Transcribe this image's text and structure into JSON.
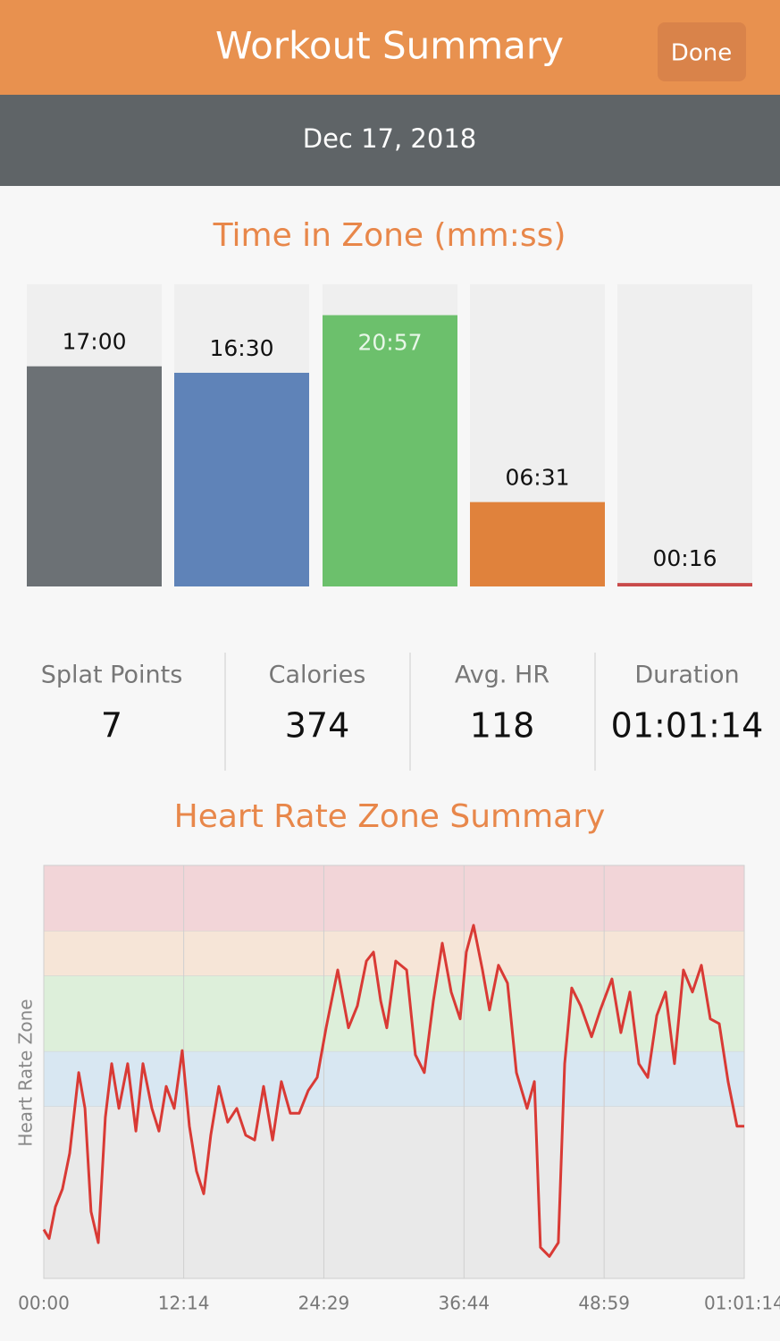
{
  "header": {
    "title": "Workout Summary",
    "button": "Done",
    "date": "Dec 17, 2018"
  },
  "stats": [
    {
      "label": "Splat Points",
      "value": 7
    },
    {
      "label": "Calories",
      "value": 374
    },
    {
      "label": "Avg. HR",
      "value": 118
    },
    {
      "label": "Duration",
      "value": "01:01:14"
    }
  ],
  "chart_data": [
    {
      "type": "bar",
      "title": "Time in Zone (mm:ss)",
      "categories": [
        null,
        null,
        null,
        null,
        null
      ],
      "values": [
        1020,
        990,
        1257,
        391,
        16
      ],
      "value_labels": [
        "17:00",
        "16:30",
        "20:57",
        "06:31",
        "00:16"
      ],
      "colors": [
        "#6c7175",
        "#5f83b8",
        "#6cc06c",
        "#e0823c",
        "#c94a4a"
      ],
      "ylim": [
        0,
        1400
      ]
    },
    {
      "type": "line",
      "title": "Heart Rate Zone Summary",
      "ylabel": "Heart Rate Zone",
      "xlim": [
        0,
        3674
      ],
      "ylim": [
        40,
        100
      ],
      "xticks": [
        {
          "value": 0,
          "label": "00:00"
        },
        {
          "value": 734,
          "label": "12:14"
        },
        {
          "value": 1469,
          "label": "24:29"
        },
        {
          "value": 2204,
          "label": "36:44"
        },
        {
          "value": 2939,
          "label": "48:59"
        },
        {
          "value": 3674,
          "label": "01:01:14"
        }
      ],
      "grid": true,
      "zones": [
        {
          "color": "#e9e9e9",
          "from": 40,
          "to": 65
        },
        {
          "color": "#d8e7f2",
          "from": 65,
          "to": 73
        },
        {
          "color": "#ddefda",
          "from": 73,
          "to": 84
        },
        {
          "color": "#f6e5d7",
          "from": 84,
          "to": 90.5
        },
        {
          "color": "#f2d5d8",
          "from": 90.5,
          "to": 100
        }
      ],
      "series": [
        {
          "color": "#d93a35",
          "x": [
            0,
            28,
            61,
            98,
            136,
            183,
            216,
            248,
            286,
            323,
            356,
            394,
            440,
            483,
            520,
            567,
            604,
            642,
            684,
            726,
            764,
            801,
            839,
            876,
            918,
            965,
            1012,
            1059,
            1106,
            1153,
            1200,
            1246,
            1293,
            1340,
            1387,
            1434,
            1481,
            1542,
            1598,
            1645,
            1692,
            1729,
            1767,
            1799,
            1846,
            1903,
            1949,
            1996,
            2043,
            2090,
            2137,
            2184,
            2216,
            2254,
            2301,
            2338,
            2385,
            2432,
            2479,
            2535,
            2573,
            2605,
            2652,
            2699,
            2732,
            2769,
            2816,
            2873,
            2919,
            2980,
            3027,
            3074,
            3121,
            3168,
            3215,
            3261,
            3308,
            3355,
            3402,
            3449,
            3496,
            3543,
            3589,
            3636,
            3674
          ],
          "values": [
            47.1,
            45.8,
            50.4,
            53.0,
            58.2,
            69.9,
            64.7,
            49.7,
            45.2,
            63.4,
            71.2,
            64.7,
            71.2,
            61.4,
            71.2,
            64.7,
            61.4,
            67.9,
            64.7,
            73.1,
            62.1,
            55.6,
            52.3,
            60.8,
            67.9,
            62.7,
            64.7,
            60.8,
            60.1,
            67.9,
            60.1,
            68.6,
            64.0,
            64.0,
            67.3,
            69.2,
            76.4,
            84.8,
            76.4,
            79.6,
            86.1,
            87.4,
            80.3,
            76.4,
            86.1,
            84.8,
            72.5,
            69.9,
            80.3,
            88.7,
            81.6,
            77.7,
            87.4,
            91.3,
            84.8,
            79.0,
            85.5,
            82.9,
            69.9,
            64.7,
            68.6,
            44.5,
            43.2,
            45.2,
            71.2,
            82.2,
            79.6,
            75.1,
            79.0,
            83.5,
            75.7,
            81.6,
            71.2,
            69.2,
            78.2,
            81.6,
            71.2,
            84.8,
            81.6,
            85.5,
            77.7,
            77.0,
            68.6,
            62.1,
            62.1
          ]
        }
      ]
    }
  ]
}
